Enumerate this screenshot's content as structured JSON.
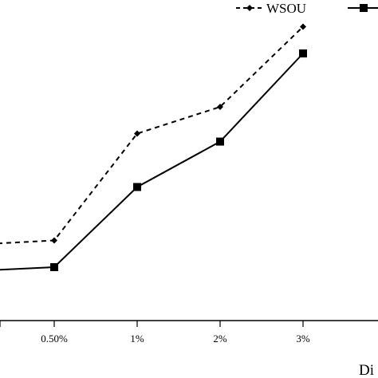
{
  "chart_data": {
    "type": "line",
    "categories": [
      "0.50%",
      "1%",
      "2%",
      "3%"
    ],
    "series": [
      {
        "name": "WSOU",
        "style": "dashed",
        "marker": "diamond",
        "values": [
          0.3,
          0.7,
          0.8,
          1.1
        ]
      },
      {
        "name": "",
        "style": "solid",
        "marker": "square",
        "values": [
          0.2,
          0.5,
          0.67,
          1.0
        ]
      }
    ],
    "xlabel": "Di",
    "ylabel": "",
    "title": "",
    "ylim": [
      0,
      1.2
    ],
    "grid": false,
    "legend_position": "top-right"
  },
  "colors": {
    "line": "#000000",
    "background": "#ffffff"
  }
}
